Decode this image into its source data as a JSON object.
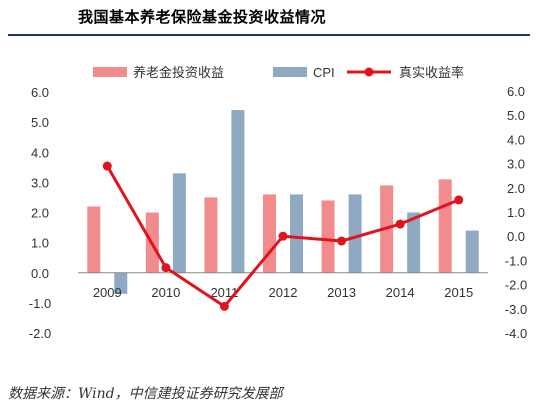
{
  "header": {
    "title": "我国基本养老保险基金投资收益情况"
  },
  "footer": {
    "source": "数据来源：Wind，中信建投证券研究发展部"
  },
  "chart_data": {
    "type": "bar",
    "title": "我国基本养老保险基金投资收益情况",
    "categories": [
      "2009",
      "2010",
      "2011",
      "2012",
      "2013",
      "2014",
      "2015"
    ],
    "series": [
      {
        "name": "养老金投资收益",
        "type": "bar",
        "axis": "left",
        "color": "#f28b8b",
        "values": [
          2.2,
          2.0,
          2.5,
          2.6,
          2.4,
          2.9,
          3.1
        ]
      },
      {
        "name": "CPI",
        "type": "bar",
        "axis": "left",
        "color": "#8ea9c1",
        "values": [
          -0.7,
          3.3,
          5.4,
          2.6,
          2.6,
          2.0,
          1.4
        ]
      },
      {
        "name": "真实收益率",
        "type": "line",
        "axis": "right",
        "color": "#e0141e",
        "values": [
          2.9,
          -1.3,
          -2.9,
          0.0,
          -0.2,
          0.5,
          1.5
        ]
      }
    ],
    "y_left": {
      "ylim": [
        -2.0,
        6.0
      ],
      "ticks": [
        "6.0",
        "5.0",
        "4.0",
        "3.0",
        "2.0",
        "1.0",
        "0.0",
        "-1.0",
        "-2.0"
      ]
    },
    "y_right": {
      "ylim": [
        -4.0,
        6.0
      ],
      "ticks": [
        "6.0",
        "5.0",
        "4.0",
        "3.0",
        "2.0",
        "1.0",
        "0.0",
        "-1.0",
        "-2.0",
        "-3.0",
        "-4.0"
      ]
    },
    "grid": false,
    "legend": "top"
  }
}
